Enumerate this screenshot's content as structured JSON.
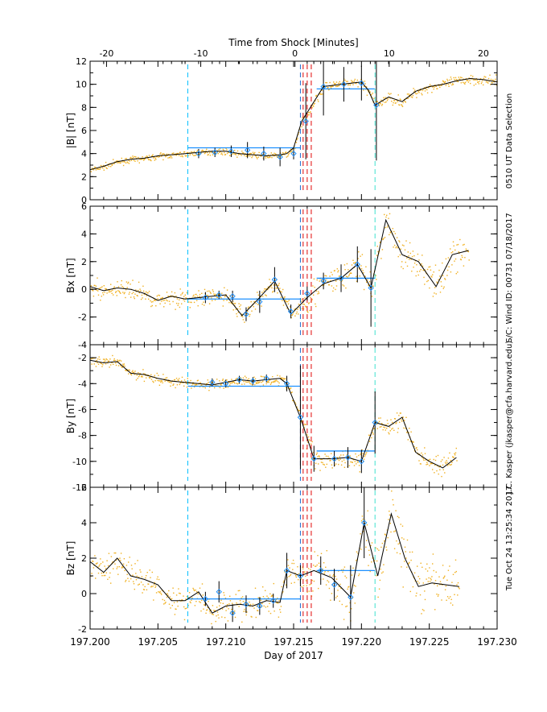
{
  "chart_data": {
    "type": "line",
    "top_axis_title": "Time from Shock [Minutes]",
    "top_axis_ticks": [
      "-20",
      "-10",
      "0",
      "10",
      "20"
    ],
    "top_axis_values": [
      -20,
      -10,
      0,
      10,
      20
    ],
    "bottom_axis_title": "Day of 2017",
    "bottom_axis_ticks": [
      "197.200",
      "197.205",
      "197.210",
      "197.215",
      "197.220",
      "197.225",
      "197.230"
    ],
    "xlim": [
      197.2,
      197.23
    ],
    "markers": {
      "upstream_window": [
        197.2072,
        197.2155
      ],
      "downstream_window": [
        197.2167,
        197.221
      ],
      "shock_candidates": [
        197.2157,
        197.216,
        197.2163
      ],
      "colors": {
        "window": "#00bfff",
        "window_alt": "#40e0d0",
        "shock": "#e53030",
        "avg": "#1e90ff",
        "data": "#f0b020"
      }
    },
    "side_labels": [
      "0510 UT Data Selection",
      "S/C: Wind ID: 00731 07/18/2017",
      "J.C. Kasper (jkasper@cfa.harvard.edu)",
      "Tue Oct 24 13:25:34 2017"
    ],
    "panels": [
      {
        "ylabel": "|B| [nT]",
        "ylim": [
          0,
          12
        ],
        "yticks": [
          "0",
          "2",
          "4",
          "6",
          "8",
          "10",
          "12"
        ],
        "line_x": [
          197.2,
          197.201,
          197.202,
          197.203,
          197.204,
          197.205,
          197.206,
          197.207,
          197.208,
          197.209,
          197.21,
          197.211,
          197.212,
          197.213,
          197.214,
          197.2145,
          197.215,
          197.2156,
          197.2172,
          197.2185,
          197.22,
          197.2205,
          197.221,
          197.222,
          197.223,
          197.224,
          197.225,
          197.226,
          197.227,
          197.228,
          197.229,
          197.23
        ],
        "line_y": [
          2.6,
          2.9,
          3.3,
          3.5,
          3.6,
          3.8,
          3.9,
          4.0,
          4.1,
          4.2,
          4.2,
          4.0,
          3.9,
          3.8,
          3.9,
          4.0,
          4.5,
          6.8,
          9.8,
          10.0,
          10.2,
          9.5,
          8.2,
          8.9,
          8.5,
          9.4,
          9.8,
          10.0,
          10.3,
          10.5,
          10.4,
          10.2
        ],
        "err_x": [
          197.208,
          197.2092,
          197.2104,
          197.2116,
          197.2128,
          197.214,
          197.215,
          197.2159,
          197.2172,
          197.2187,
          197.22,
          197.2211
        ],
        "err_y": [
          4.0,
          4.1,
          4.2,
          4.3,
          4.0,
          3.7,
          4.0,
          6.8,
          9.8,
          10.0,
          10.1,
          8.2
        ],
        "err_e": [
          0.4,
          0.4,
          0.5,
          0.7,
          0.6,
          0.8,
          0.5,
          3.3,
          2.5,
          1.5,
          1.5,
          4.8
        ],
        "avg_up": 4.5,
        "avg_down": 9.6,
        "noise": 0.18
      },
      {
        "ylabel": "Bx [nT]",
        "ylim": [
          -4,
          6
        ],
        "yticks": [
          "-4",
          "-2",
          "0",
          "2",
          "4",
          "6"
        ],
        "line_x": [
          197.2,
          197.201,
          197.202,
          197.203,
          197.204,
          197.205,
          197.206,
          197.207,
          197.208,
          197.209,
          197.21,
          197.2112,
          197.2124,
          197.2136,
          197.2148,
          197.216,
          197.2172,
          197.2185,
          197.2197,
          197.2207,
          197.2218,
          197.223,
          197.2242,
          197.2255,
          197.2267,
          197.2279
        ],
        "line_y": [
          0.2,
          -0.1,
          0.1,
          0.0,
          -0.3,
          -0.8,
          -0.5,
          -0.7,
          -0.6,
          -0.5,
          -0.4,
          -1.9,
          -0.7,
          0.6,
          -1.8,
          -0.6,
          0.4,
          0.8,
          1.8,
          0.1,
          5.0,
          2.5,
          2.0,
          0.2,
          2.5,
          2.8
        ],
        "err_x": [
          197.2085,
          197.2095,
          197.2105,
          197.2115,
          197.2125,
          197.2136,
          197.2148,
          197.216,
          197.2172,
          197.2185,
          197.2197,
          197.2207
        ],
        "err_y": [
          -0.6,
          -0.4,
          -0.5,
          -1.8,
          -0.9,
          0.7,
          -1.6,
          -0.3,
          0.6,
          0.8,
          1.8,
          0.1
        ],
        "err_e": [
          0.4,
          0.3,
          0.4,
          0.5,
          0.8,
          0.9,
          0.5,
          0.5,
          0.6,
          1.0,
          1.3,
          2.8
        ],
        "avg_up": -0.7,
        "avg_down": 0.8,
        "noise": 0.45
      },
      {
        "ylabel": "By [nT]",
        "ylim": [
          -12,
          -1
        ],
        "yticks": [
          "-12",
          "-10",
          "-8",
          "-6",
          "-4",
          "-2"
        ],
        "line_x": [
          197.2,
          197.201,
          197.202,
          197.203,
          197.204,
          197.205,
          197.206,
          197.207,
          197.208,
          197.209,
          197.21,
          197.211,
          197.212,
          197.213,
          197.214,
          197.2145,
          197.2155,
          197.2165,
          197.2178,
          197.219,
          197.22,
          197.221,
          197.222,
          197.223,
          197.224,
          197.225,
          197.226,
          197.227
        ],
        "line_y": [
          -2.2,
          -2.4,
          -2.3,
          -3.2,
          -3.3,
          -3.6,
          -3.8,
          -3.9,
          -4.0,
          -4.1,
          -3.9,
          -3.7,
          -3.8,
          -3.7,
          -3.6,
          -4.0,
          -6.6,
          -9.8,
          -9.8,
          -9.7,
          -10.0,
          -7.0,
          -7.3,
          -6.6,
          -9.3,
          -10.0,
          -10.5,
          -9.7
        ],
        "err_x": [
          197.209,
          197.21,
          197.211,
          197.212,
          197.213,
          197.2145,
          197.2155,
          197.2165,
          197.218,
          197.219,
          197.22,
          197.221
        ],
        "err_y": [
          -3.9,
          -4.0,
          -3.7,
          -3.8,
          -3.6,
          -4.0,
          -6.6,
          -9.8,
          -9.8,
          -9.7,
          -10.0,
          -7.0
        ],
        "err_e": [
          0.3,
          0.3,
          0.3,
          0.3,
          0.3,
          0.6,
          4.0,
          1.0,
          0.6,
          0.8,
          0.9,
          2.4
        ],
        "avg_up": -4.2,
        "avg_down": -9.2,
        "noise": 0.3
      },
      {
        "ylabel": "Bz [nT]",
        "ylim": [
          -2,
          6
        ],
        "yticks": [
          "-2",
          "0",
          "2",
          "4",
          "6"
        ],
        "line_x": [
          197.2,
          197.201,
          197.202,
          197.203,
          197.204,
          197.205,
          197.206,
          197.207,
          197.208,
          197.209,
          197.21,
          197.211,
          197.212,
          197.213,
          197.214,
          197.2145,
          197.2155,
          197.2165,
          197.2178,
          197.2192,
          197.2202,
          197.2212,
          197.2222,
          197.2232,
          197.2242,
          197.2252,
          197.2262,
          197.2272
        ],
        "line_y": [
          1.8,
          1.2,
          2.0,
          1.0,
          0.8,
          0.5,
          -0.4,
          -0.4,
          0.1,
          -1.1,
          -0.7,
          -0.6,
          -0.7,
          -0.4,
          -0.5,
          1.3,
          1.0,
          1.3,
          0.9,
          -0.2,
          4.0,
          1.0,
          4.5,
          2.0,
          0.4,
          0.6,
          0.5,
          0.4
        ],
        "err_x": [
          197.2085,
          197.2095,
          197.2105,
          197.2115,
          197.2125,
          197.2135,
          197.2145,
          197.2155,
          197.217,
          197.218,
          197.2192,
          197.2202
        ],
        "err_y": [
          -0.3,
          0.1,
          -1.1,
          -0.6,
          -0.7,
          -0.4,
          1.3,
          1.0,
          1.3,
          0.5,
          -0.2,
          4.0
        ],
        "err_e": [
          0.4,
          0.6,
          0.5,
          0.5,
          0.5,
          0.4,
          1.0,
          0.6,
          0.8,
          0.9,
          1.8,
          2.0
        ],
        "avg_up": -0.3,
        "avg_down": 1.3,
        "noise": 0.6
      }
    ]
  }
}
